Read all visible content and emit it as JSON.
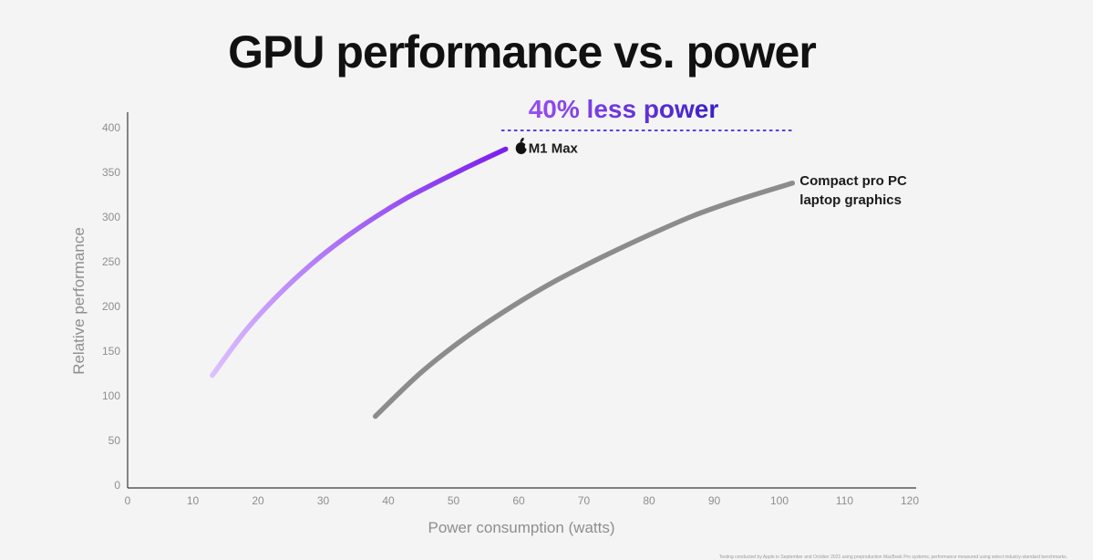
{
  "chart_data": {
    "type": "line",
    "title": "GPU performance vs. power",
    "xlabel": "Power consumption (watts)",
    "ylabel": "Relative performance",
    "xlim": [
      0,
      120
    ],
    "ylim": [
      0,
      400
    ],
    "xticks": [
      0,
      10,
      20,
      30,
      40,
      50,
      60,
      70,
      80,
      90,
      100,
      110,
      120
    ],
    "yticks": [
      0,
      50,
      100,
      150,
      200,
      250,
      300,
      350,
      400
    ],
    "grid": false,
    "series": [
      {
        "name": "M1 Max",
        "color_start": "#dcc0ff",
        "color_end": "#7a1ff0",
        "x": [
          13,
          18,
          23,
          28,
          33,
          38,
          43,
          48,
          53,
          58
        ],
        "y": [
          123,
          172,
          212,
          246,
          275,
          300,
          322,
          341,
          359,
          376
        ]
      },
      {
        "name": "Compact pro PC laptop graphics",
        "color": "#8c8c8c",
        "x": [
          38,
          45,
          52,
          59,
          66,
          73,
          80,
          87,
          94,
          102
        ],
        "y": [
          77,
          126,
          166,
          200,
          230,
          256,
          280,
          302,
          320,
          338
        ]
      }
    ],
    "series_labels": {
      "m1_max": "M1 Max",
      "pc_line1": "Compact pro PC",
      "pc_line2": "laptop graphics"
    },
    "annotation": {
      "text": "40% less power",
      "x_from": 58,
      "x_to": 102,
      "color_start": "#9a4ff2",
      "color_end": "#3a1fc6"
    },
    "apple_logo": "apple-logo-icon"
  },
  "footnote": "Testing conducted by Apple in September and October 2021 using preproduction MacBook Pro systems; performance measured using select industry-standard benchmarks."
}
